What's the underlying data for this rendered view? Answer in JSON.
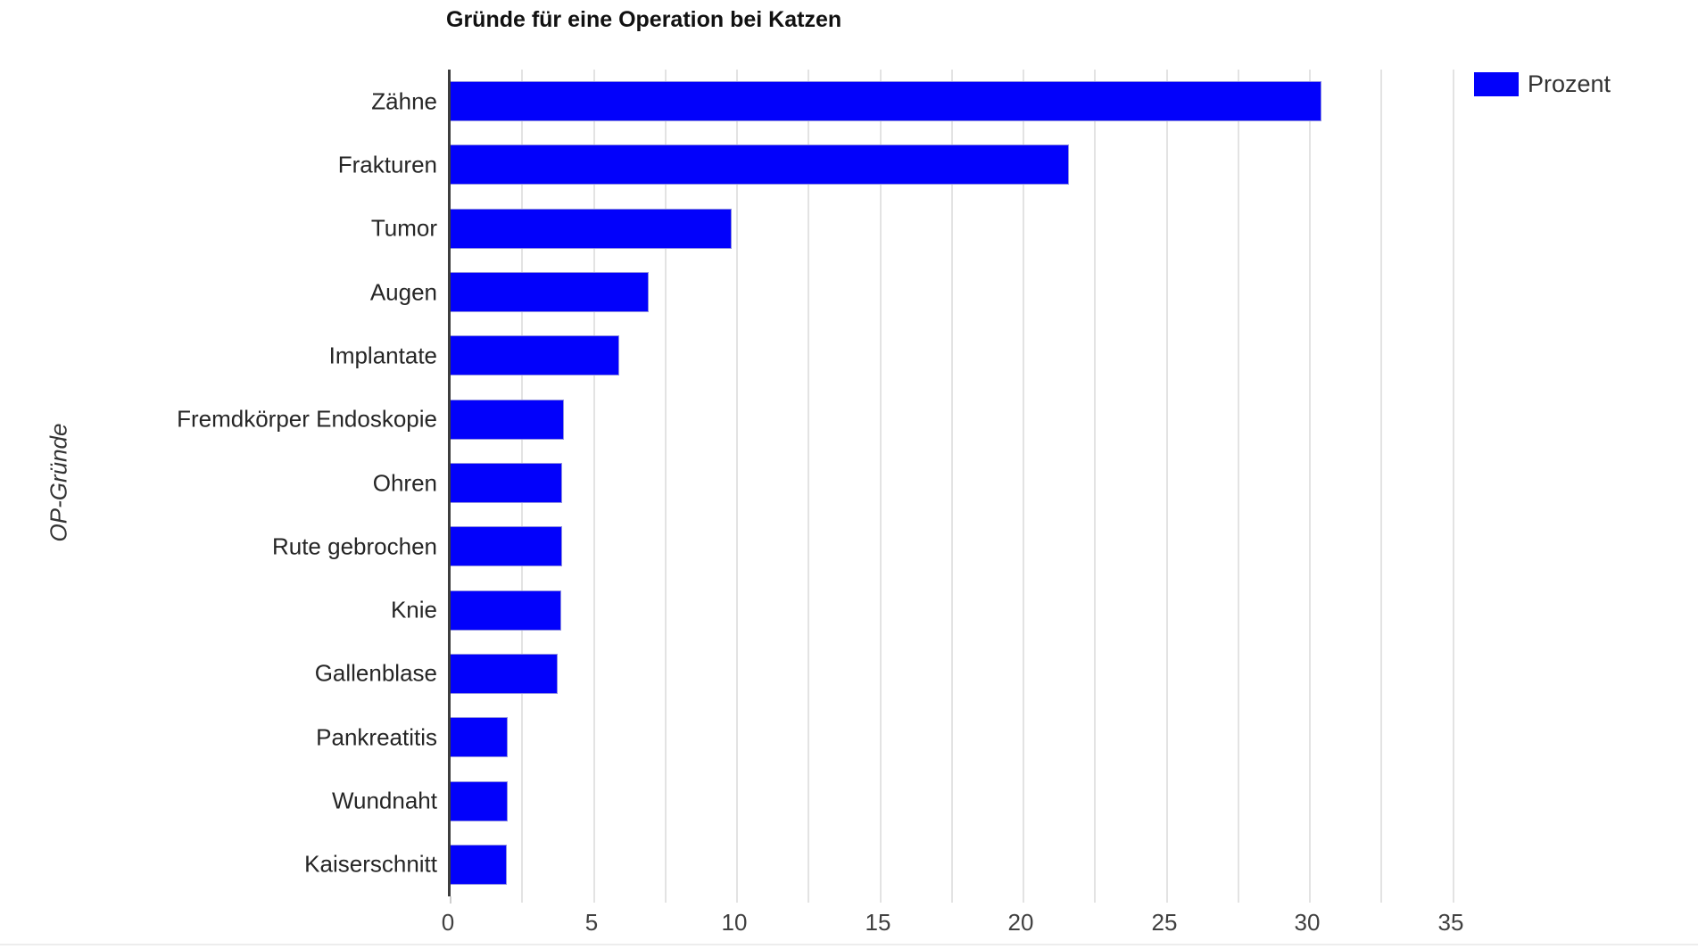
{
  "chart_data": {
    "type": "bar",
    "orientation": "horizontal",
    "title": "Gründe für eine Operation bei Katzen",
    "ylabel": "OP-Gründe",
    "xlabel": "",
    "legend": {
      "label": "Prozent",
      "position": "top-right"
    },
    "categories": [
      "Zähne",
      "Frakturen",
      "Tumor",
      "Augen",
      "Implantate",
      "Fremdkörper Endoskopie",
      "Ohren",
      "Rute gebrochen",
      "Knie",
      "Gallenblase",
      "Pankreatitis",
      "Wundnaht",
      "Kaiserschnitt"
    ],
    "series": [
      {
        "name": "Prozent",
        "values": [
          30.4,
          21.6,
          9.8,
          6.9,
          5.9,
          3.95,
          3.9,
          3.9,
          3.85,
          3.75,
          2.0,
          2.0,
          1.95
        ]
      }
    ],
    "xlim": [
      0,
      35.2
    ],
    "xticks": [
      0,
      5,
      10,
      15,
      20,
      25,
      30,
      35
    ],
    "minor_gridline_step": 2.5,
    "grid": true,
    "legend_on": true,
    "bar_color": "#0201fb",
    "axis_color": "#3d3d3d",
    "grid_color": "#e3e3e3",
    "tick_label_color": "#404040",
    "category_label_color": "#262626"
  }
}
